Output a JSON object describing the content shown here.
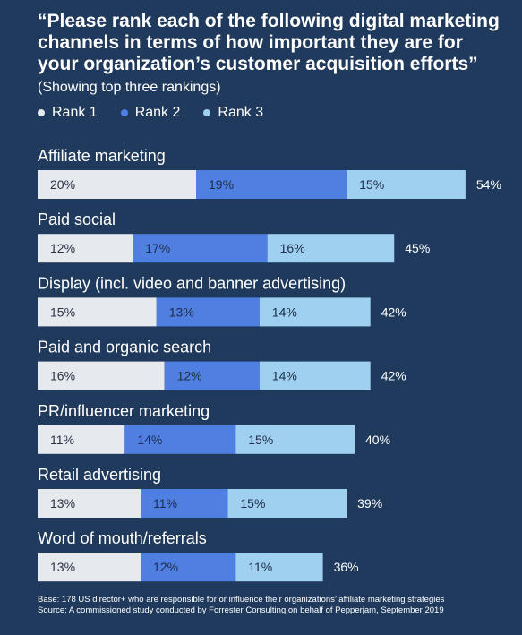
{
  "title_main": "“Please rank each of the following digital marketing channels in terms of how important they are for your organization’s customer acquisition efforts”",
  "title_sub": "(Showing top three rankings)",
  "colors": {
    "background": "#1f3a5c",
    "rank1": "#e6e9ee",
    "rank2": "#4f7fe0",
    "rank3": "#9fd0f0"
  },
  "footer": {
    "base": "Base: 178 US director+ who are responsible for or influence their organizations’ affiliate marketing strategies",
    "source": "Source: A commissioned study conducted by Forrester Consulting on behalf of Pepperjam, September 2019"
  },
  "chart_data": {
    "type": "bar",
    "orientation": "horizontal",
    "stacked": true,
    "legend_position": "top-left",
    "categories": [
      "Affiliate marketing",
      "Paid social",
      "Display (incl. video and banner advertising)",
      "Paid and organic search",
      "PR/influencer marketing",
      "Retail advertising",
      "Word of mouth/referrals"
    ],
    "series": [
      {
        "name": "Rank 1",
        "values": [
          20,
          12,
          15,
          16,
          11,
          13,
          13
        ],
        "labels": [
          "20%",
          "12%",
          "15%",
          "16%",
          "11%",
          "13%",
          "13%"
        ]
      },
      {
        "name": "Rank 2",
        "values": [
          19,
          17,
          13,
          12,
          14,
          11,
          12
        ],
        "labels": [
          "19%",
          "17%",
          "13%",
          "12%",
          "14%",
          "11%",
          "12%"
        ]
      },
      {
        "name": "Rank 3",
        "values": [
          15,
          16,
          14,
          14,
          15,
          15,
          11
        ],
        "labels": [
          "15%",
          "16%",
          "14%",
          "14%",
          "15%",
          "15%",
          "11%"
        ]
      }
    ],
    "totals": [
      54,
      45,
      42,
      42,
      40,
      39,
      36
    ],
    "total_labels": [
      "54%",
      "45%",
      "42%",
      "42%",
      "40%",
      "39%",
      "36%"
    ]
  }
}
